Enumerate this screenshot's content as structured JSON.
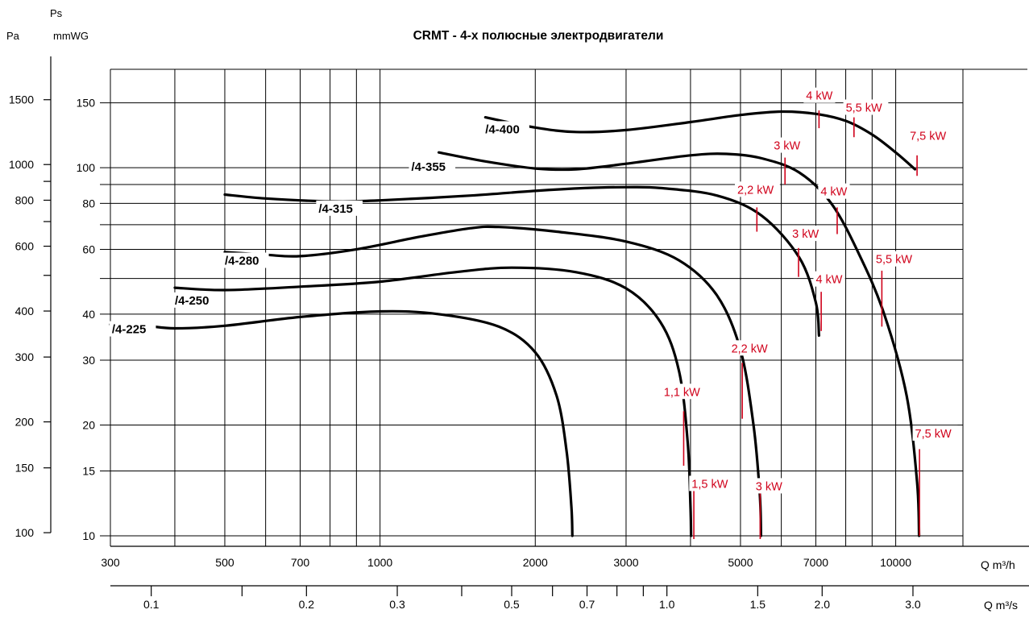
{
  "chart_data": {
    "type": "line",
    "title": "CRMT  -  4-х полюсные электродвигатели",
    "y_axis_pa_label": "Pa",
    "y_axis_ps_label": "Ps",
    "y_axis_mm_label": "mmWG",
    "x_axis_h_label": "Q m³/h",
    "x_axis_s_label": "Q m³/s",
    "x_scale": "log",
    "y_scale": "log",
    "xlim": [
      300,
      13500
    ],
    "ylim": [
      10,
      185
    ],
    "grid": true,
    "x_ticks": [
      {
        "value": 300,
        "label": "300"
      },
      {
        "value": 400,
        "label": ""
      },
      {
        "value": 500,
        "label": "500"
      },
      {
        "value": 600,
        "label": ""
      },
      {
        "value": 700,
        "label": "700"
      },
      {
        "value": 800,
        "label": ""
      },
      {
        "value": 900,
        "label": ""
      },
      {
        "value": 1000,
        "label": "1000"
      },
      {
        "value": 2000,
        "label": "2000"
      },
      {
        "value": 3000,
        "label": "3000"
      },
      {
        "value": 4000,
        "label": ""
      },
      {
        "value": 5000,
        "label": "5000"
      },
      {
        "value": 6000,
        "label": ""
      },
      {
        "value": 7000,
        "label": "7000"
      },
      {
        "value": 8000,
        "label": ""
      },
      {
        "value": 9000,
        "label": ""
      },
      {
        "value": 10000,
        "label": "10000"
      },
      {
        "value": 13500,
        "label": ""
      }
    ],
    "x_s_ticks": [
      {
        "value": 0.1,
        "label": "0.1"
      },
      {
        "value": 0.15,
        "label": ""
      },
      {
        "value": 0.2,
        "label": "0.2"
      },
      {
        "value": 0.3,
        "label": "0.3"
      },
      {
        "value": 0.4,
        "label": ""
      },
      {
        "value": 0.5,
        "label": "0.5"
      },
      {
        "value": 0.6,
        "label": ""
      },
      {
        "value": 0.7,
        "label": "0.7"
      },
      {
        "value": 0.8,
        "label": ""
      },
      {
        "value": 0.9,
        "label": ""
      },
      {
        "value": 1.0,
        "label": "1.0"
      },
      {
        "value": 1.5,
        "label": "1.5"
      },
      {
        "value": 2.0,
        "label": "2.0"
      },
      {
        "value": 3.0,
        "label": "3.0"
      }
    ],
    "y_mm_ticks": [
      {
        "value": 10,
        "label": "10"
      },
      {
        "value": 15,
        "label": "15"
      },
      {
        "value": 20,
        "label": "20"
      },
      {
        "value": 30,
        "label": "30"
      },
      {
        "value": 40,
        "label": "40"
      },
      {
        "value": 60,
        "label": "60"
      },
      {
        "value": 80,
        "label": "80"
      },
      {
        "value": 100,
        "label": "100"
      },
      {
        "value": 150,
        "label": "150"
      }
    ],
    "y_mm_gridlines": [
      10,
      15,
      20,
      30,
      40,
      50,
      60,
      70,
      80,
      90,
      100,
      150
    ],
    "y_pa_ticks": [
      {
        "value": 100,
        "label": "100"
      },
      {
        "value": 150,
        "label": "150"
      },
      {
        "value": 200,
        "label": "200"
      },
      {
        "value": 300,
        "label": "300"
      },
      {
        "value": 400,
        "label": "400"
      },
      {
        "value": 500,
        "label": ""
      },
      {
        "value": 600,
        "label": "600"
      },
      {
        "value": 700,
        "label": ""
      },
      {
        "value": 800,
        "label": "800"
      },
      {
        "value": 900,
        "label": ""
      },
      {
        "value": 1000,
        "label": "1000"
      },
      {
        "value": 1500,
        "label": "1500"
      }
    ],
    "series": [
      {
        "name": "/4-225",
        "label_at": [
          302,
          35.5
        ],
        "points": [
          [
            300,
            37.5
          ],
          [
            350,
            37.2
          ],
          [
            400,
            36.6
          ],
          [
            500,
            37.2
          ],
          [
            700,
            39.3
          ],
          [
            1000,
            40.7
          ],
          [
            1300,
            40
          ],
          [
            1700,
            37
          ],
          [
            2000,
            31.5
          ],
          [
            2200,
            24
          ],
          [
            2300,
            17
          ],
          [
            2350,
            12
          ],
          [
            2360,
            10
          ]
        ]
      },
      {
        "name": "/4-250",
        "label_at": [
          400,
          42.5
        ],
        "points": [
          [
            400,
            47.2
          ],
          [
            500,
            46.5
          ],
          [
            700,
            47.5
          ],
          [
            1000,
            49
          ],
          [
            1400,
            52
          ],
          [
            1800,
            53.5
          ],
          [
            2400,
            52
          ],
          [
            3000,
            47
          ],
          [
            3500,
            38
          ],
          [
            3800,
            28
          ],
          [
            3950,
            18
          ],
          [
            4000,
            12
          ],
          [
            4010,
            10
          ]
        ]
      },
      {
        "name": "/4-280",
        "label_at": [
          500,
          54.5
        ],
        "points": [
          [
            500,
            59
          ],
          [
            600,
            58
          ],
          [
            700,
            57.5
          ],
          [
            900,
            60
          ],
          [
            1200,
            65
          ],
          [
            1500,
            68.5
          ],
          [
            1700,
            69
          ],
          [
            2200,
            67
          ],
          [
            3000,
            63
          ],
          [
            3800,
            56
          ],
          [
            4500,
            45
          ],
          [
            5000,
            32
          ],
          [
            5300,
            20
          ],
          [
            5450,
            13
          ],
          [
            5480,
            10
          ]
        ]
      },
      {
        "name": "/4-315",
        "label_at": [
          760,
          75.5
        ],
        "points": [
          [
            500,
            84.5
          ],
          [
            600,
            82.5
          ],
          [
            800,
            81
          ],
          [
            1000,
            81.5
          ],
          [
            1500,
            84
          ],
          [
            2000,
            86.5
          ],
          [
            2500,
            88
          ],
          [
            3000,
            88.5
          ],
          [
            3500,
            88
          ],
          [
            4500,
            84
          ],
          [
            5500,
            74
          ],
          [
            6500,
            57
          ],
          [
            7000,
            43
          ],
          [
            7100,
            35
          ]
        ]
      },
      {
        "name": "/4-355",
        "label_at": [
          1150,
          98
        ],
        "points": [
          [
            1300,
            110
          ],
          [
            1600,
            104
          ],
          [
            2000,
            99.5
          ],
          [
            2400,
            99
          ],
          [
            3000,
            102.5
          ],
          [
            4000,
            108
          ],
          [
            4700,
            109
          ],
          [
            5500,
            106
          ],
          [
            6500,
            97
          ],
          [
            7500,
            80
          ],
          [
            8500,
            58
          ],
          [
            9500,
            40
          ],
          [
            10500,
            24
          ],
          [
            11000,
            14
          ],
          [
            11100,
            10
          ]
        ]
      },
      {
        "name": "/4-400",
        "label_at": [
          1600,
          124
        ],
        "points": [
          [
            1600,
            137
          ],
          [
            2000,
            128.5
          ],
          [
            2400,
            125
          ],
          [
            3000,
            126.5
          ],
          [
            4000,
            133
          ],
          [
            5000,
            139
          ],
          [
            6000,
            142
          ],
          [
            7000,
            140
          ],
          [
            8000,
            134
          ],
          [
            9000,
            123
          ],
          [
            10000,
            110
          ],
          [
            10900,
            99
          ]
        ]
      }
    ],
    "power_marks": [
      {
        "label": "1,1 kW",
        "x": 3880,
        "y_top": 21.8,
        "y_bottom": 15.5,
        "label_at": [
          3550,
          24
        ]
      },
      {
        "label": "1,5 kW",
        "x": 4060,
        "y_top": 13.5,
        "y_bottom": 9.8,
        "label_at": [
          4020,
          13.5
        ]
      },
      {
        "label": "2,2 kW",
        "x": 5040,
        "y_top": 29.5,
        "y_bottom": 20.8,
        "label_at": [
          4800,
          31.5
        ]
      },
      {
        "label": "3 kW",
        "x": 5460,
        "y_top": 13.3,
        "y_bottom": 9.8,
        "label_at": [
          5350,
          13.3
        ]
      },
      {
        "label": "2,2 kW",
        "x": 5380,
        "y_top": 78,
        "y_bottom": 67,
        "label_at": [
          4930,
          85
        ]
      },
      {
        "label": "3 kW",
        "x": 6480,
        "y_top": 60.5,
        "y_bottom": 50.5,
        "label_at": [
          6300,
          64.5
        ]
      },
      {
        "label": "4 kW",
        "x": 7170,
        "y_top": 46,
        "y_bottom": 36,
        "label_at": [
          7000,
          48.5
        ]
      },
      {
        "label": "3 kW",
        "x": 6100,
        "y_top": 106.5,
        "y_bottom": 90,
        "label_at": [
          5800,
          112
        ]
      },
      {
        "label": "4 kW",
        "x": 7700,
        "y_top": 78,
        "y_bottom": 66,
        "label_at": [
          7150,
          84
        ]
      },
      {
        "label": "5,5 kW",
        "x": 9400,
        "y_top": 52.5,
        "y_bottom": 37,
        "label_at": [
          9150,
          55
        ]
      },
      {
        "label": "7,5 kW",
        "x": 11120,
        "y_top": 17.2,
        "y_bottom": 10,
        "label_at": [
          10900,
          18.5
        ]
      },
      {
        "label": "4 kW",
        "x": 7100,
        "y_top": 143,
        "y_bottom": 128,
        "label_at": [
          6700,
          153
        ]
      },
      {
        "label": "5,5 kW",
        "x": 8300,
        "y_top": 137,
        "y_bottom": 121,
        "label_at": [
          8000,
          142
        ]
      },
      {
        "label": "7,5 kW",
        "x": 11000,
        "y_top": 108,
        "y_bottom": 95,
        "label_at": [
          10650,
          119
        ]
      }
    ]
  }
}
